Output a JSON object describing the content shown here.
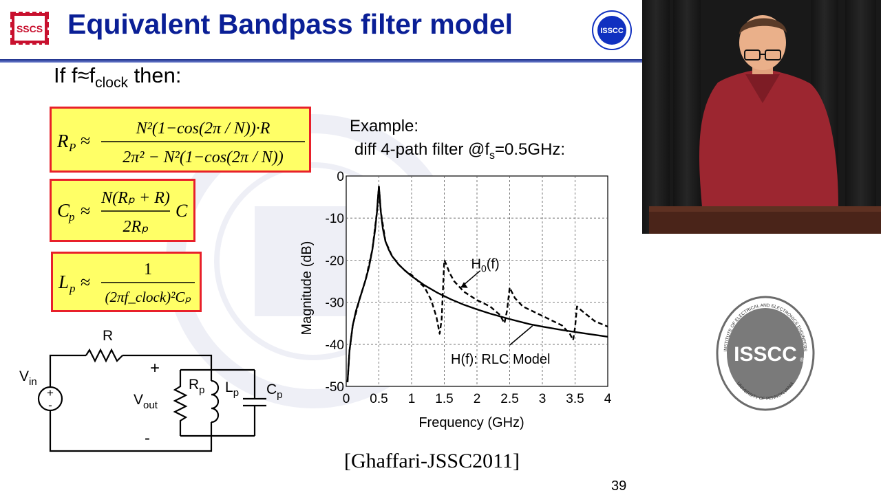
{
  "slide": {
    "title": "Equivalent Bandpass filter model",
    "subheading": {
      "prefix": "If f",
      "approx": "≈",
      "f": "f",
      "sub": "clock",
      "suffix": " then:"
    },
    "page_number": "39",
    "citation": "[Ghaffari-JSSC2011]",
    "logos": {
      "sscs": "SSCS",
      "isscc": "ISSCC",
      "ieee_ring": "INSTITUTE OF ELECTRICAL AND ELECTRONICS ENGINEERS",
      "upenn_ring": "UNIVERSITY OF PENNSYLVANIA",
      "reg_mark": "®"
    }
  },
  "equations": {
    "rp": {
      "lhs_main": "R",
      "lhs_sub": "P",
      "approx": "≈",
      "num": "N²(1−cos(2π / N))·R",
      "den": "2π² − N²(1−cos(2π / N))"
    },
    "cp": {
      "lhs_main": "C",
      "lhs_sub": "p",
      "approx": "≈",
      "num": "N(Rₚ + R)",
      "den": "2Rₚ",
      "trail": "C"
    },
    "lp": {
      "lhs_main": "L",
      "lhs_sub": "p",
      "approx": "≈",
      "num": "1",
      "den": "(2πf_clock)²Cₚ"
    }
  },
  "example": {
    "line1": "Example:",
    "line2_prefix": "diff 4-path filter @f",
    "line2_sub": "s",
    "line2_suffix": "=0.5GHz:"
  },
  "chart_data": {
    "type": "line",
    "xlabel": "Frequency (GHz)",
    "ylabel": "Magnitude (dB)",
    "xlim": [
      0,
      4
    ],
    "ylim": [
      -50,
      0
    ],
    "xticks": [
      "0",
      "0.5",
      "1",
      "1.5",
      "2",
      "2.5",
      "3",
      "3.5",
      "4"
    ],
    "yticks": [
      "0",
      "-10",
      "-20",
      "-30",
      "-40",
      "-50"
    ],
    "grid": true,
    "annotations": [
      {
        "text_main": "H",
        "text_sub": "0",
        "text_tail": "(f)",
        "x": 2.1,
        "y": -20.8
      },
      {
        "text_main": "H(f): RLC Model",
        "text_sub": "",
        "text_tail": "",
        "x": 1.6,
        "y": -43.5
      }
    ],
    "series": [
      {
        "name": "H(f): RLC Model",
        "style": "solid",
        "x": [
          0.02,
          0.05,
          0.1,
          0.15,
          0.2,
          0.25,
          0.3,
          0.35,
          0.4,
          0.44,
          0.47,
          0.49,
          0.5,
          0.51,
          0.53,
          0.56,
          0.6,
          0.65,
          0.7,
          0.8,
          0.9,
          1.0,
          1.2,
          1.4,
          1.6,
          1.8,
          2.0,
          2.2,
          2.5,
          2.8,
          3.0,
          3.3,
          3.6,
          4.0
        ],
        "y": [
          -49,
          -41.5,
          -35.5,
          -32,
          -29.5,
          -27,
          -24.5,
          -21.5,
          -17.5,
          -13,
          -8.5,
          -4.5,
          -2.5,
          -4.5,
          -8.5,
          -12.5,
          -15.5,
          -17.5,
          -19,
          -21,
          -22.5,
          -23.8,
          -26,
          -27.8,
          -29.3,
          -30.6,
          -31.7,
          -32.7,
          -34,
          -35.2,
          -35.8,
          -36.6,
          -37.3,
          -38.2
        ]
      },
      {
        "name": "H0(f)",
        "style": "dashed",
        "x": [
          0.02,
          0.05,
          0.1,
          0.2,
          0.3,
          0.4,
          0.47,
          0.5,
          0.53,
          0.6,
          0.7,
          0.8,
          0.9,
          1.0,
          1.1,
          1.2,
          1.3,
          1.38,
          1.43,
          1.46,
          1.5,
          1.53,
          1.58,
          1.65,
          1.8,
          2.0,
          2.2,
          2.35,
          2.42,
          2.46,
          2.5,
          2.53,
          2.58,
          2.7,
          2.9,
          3.1,
          3.3,
          3.42,
          3.47,
          3.5,
          3.53,
          3.6,
          3.8,
          4.0
        ],
        "y": [
          -49,
          -41.5,
          -35.5,
          -29.5,
          -24.5,
          -17.5,
          -8.5,
          -2.5,
          -8.5,
          -15.5,
          -19,
          -21,
          -22.5,
          -23.5,
          -25,
          -26.5,
          -29.5,
          -33.5,
          -37.5,
          -34,
          -20,
          -21,
          -23,
          -25,
          -27.5,
          -29.5,
          -31,
          -33,
          -35,
          -32,
          -26.5,
          -27.5,
          -29,
          -31,
          -32.5,
          -34,
          -35.5,
          -37.5,
          -39,
          -36,
          -31,
          -32,
          -34.5,
          -35.8
        ]
      }
    ]
  },
  "circuit": {
    "R": "R",
    "Vin_main": "V",
    "Vin_sub": "in",
    "Vout_main": "V",
    "Vout_sub": "out",
    "plus": "+",
    "minus": "-",
    "src_plus": "+",
    "src_minus": "-",
    "Rp_main": "R",
    "Rp_sub": "p",
    "Lp_main": "L",
    "Lp_sub": "p",
    "Cp_main": "C",
    "Cp_sub": "p"
  }
}
